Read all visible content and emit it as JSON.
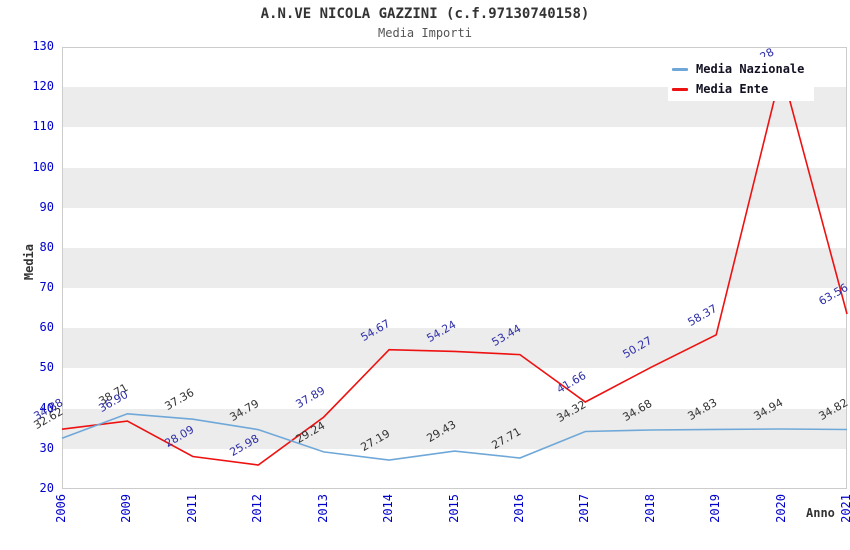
{
  "header": {
    "title": "A.N.VE NICOLA GAZZINI (c.f.97130740158)",
    "subtitle": "Media Importi"
  },
  "style": {
    "tick_color": "#0000cc",
    "band_color": "#ececec",
    "frame_color": "#cccccc",
    "title_color": "#333333",
    "subtitle_color": "#555555",
    "nazionale_line_color": "#6fa8d8",
    "ente_line_color": "#ee1111",
    "nazionale_label_color": "#333333",
    "ente_label_color": "#2d2da8"
  },
  "chart_data": {
    "type": "line",
    "title": "A.N.VE NICOLA GAZZINI (c.f.97130740158)",
    "subtitle": "Media Importi",
    "xlabel": "Anno",
    "ylabel": "Media",
    "x": [
      "2006",
      "2009",
      "2011",
      "2012",
      "2013",
      "2014",
      "2015",
      "2016",
      "2017",
      "2018",
      "2019",
      "2020",
      "2021"
    ],
    "ylim": [
      20,
      130
    ],
    "ytick_step": 10,
    "y_ticks": [
      20,
      30,
      40,
      50,
      60,
      70,
      80,
      90,
      100,
      110,
      120,
      130
    ],
    "grid_bands": "alternating horizontal gray bands every 10 units (30-40, 50-60, 70-80, 90-100, 110-120)",
    "legend_position": "top-right",
    "point_labels_rotation_deg": -30,
    "series": [
      {
        "name": "Media Nazionale",
        "color": "#6fa8d8",
        "label_color": "#333333",
        "values": [
          32.62,
          38.71,
          37.36,
          34.79,
          29.24,
          27.19,
          29.43,
          27.71,
          34.32,
          34.68,
          34.83,
          34.94,
          34.82
        ]
      },
      {
        "name": "Media Ente",
        "color": "#ee1111",
        "label_color": "#2d2da8",
        "values": [
          34.88,
          36.9,
          28.09,
          25.98,
          37.89,
          54.67,
          54.24,
          53.44,
          41.66,
          50.27,
          58.37,
          124.28,
          63.56
        ]
      }
    ],
    "notes": {
      "ente_2020": "peak value estimated; its data label is mostly hidden behind the legend box, only the tops of the last digits are visible above the legend"
    }
  }
}
